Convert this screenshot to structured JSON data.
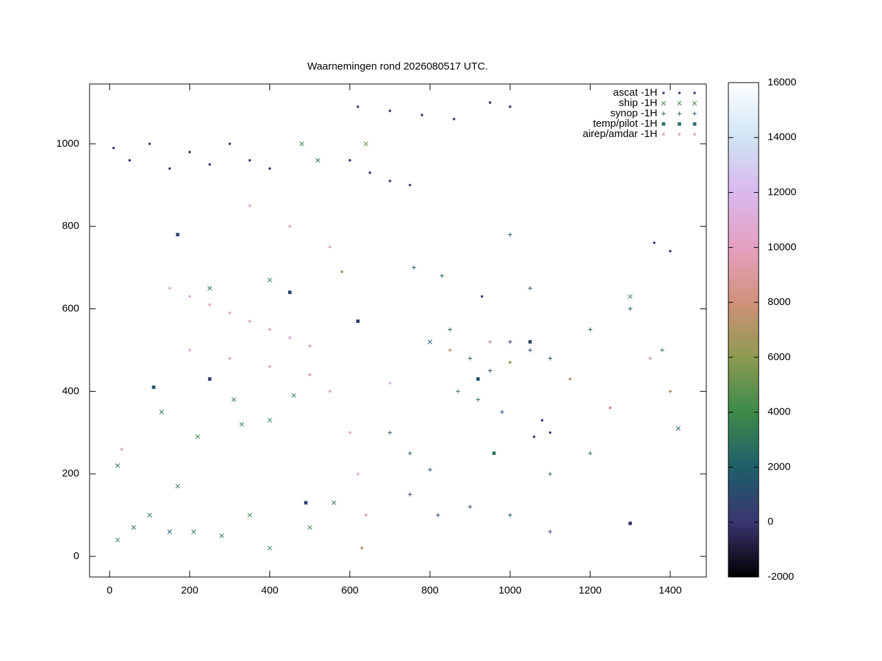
{
  "chart_data": {
    "type": "scatter",
    "title": "Waarnemingen rond 2026080517 UTC.",
    "xlim": [
      -50,
      1490
    ],
    "ylim": [
      -50,
      1145
    ],
    "xticks": [
      0,
      200,
      400,
      600,
      800,
      1000,
      1200,
      1400
    ],
    "yticks": [
      0,
      200,
      400,
      600,
      800,
      1000
    ],
    "cblim": [
      -2000,
      16000
    ],
    "cbticks": [
      -2000,
      0,
      2000,
      4000,
      6000,
      8000,
      10000,
      12000,
      14000,
      16000
    ],
    "palette": [
      "#000000",
      "#3a3570",
      "#1f5f6a",
      "#3d8a4a",
      "#8e9a52",
      "#d0917a",
      "#e6a0c0",
      "#d9b8ee",
      "#d0e4f4",
      "#ffffff"
    ],
    "legend": "upper right",
    "series": [
      {
        "name": "ascat -1H",
        "marker": "dot",
        "color": "#3a3570",
        "x": [
          10,
          50,
          100,
          150,
          200,
          250,
          300,
          350,
          400,
          600,
          650,
          700,
          750,
          620,
          700,
          780,
          860,
          950,
          1000,
          1360,
          1400,
          1060,
          1100,
          1080,
          930
        ],
        "y": [
          990,
          960,
          1000,
          940,
          980,
          950,
          1000,
          960,
          940,
          960,
          930,
          910,
          900,
          1090,
          1080,
          1070,
          1060,
          1100,
          1090,
          760,
          740,
          290,
          300,
          330,
          630
        ],
        "z": [
          0,
          0,
          200,
          0,
          -200,
          0,
          0,
          0,
          0,
          0,
          0,
          0,
          0,
          0,
          0,
          0,
          0,
          0,
          0,
          0,
          0,
          0,
          0,
          0,
          0
        ]
      },
      {
        "name": "ship -1H",
        "marker": "cross",
        "color": "#3d8a4a",
        "x": [
          20,
          60,
          100,
          150,
          210,
          280,
          400,
          500,
          130,
          220,
          310,
          330,
          400,
          460,
          20,
          170,
          350,
          560,
          480,
          640,
          520,
          800,
          400,
          250,
          1300,
          1420
        ],
        "y": [
          40,
          70,
          100,
          60,
          60,
          50,
          20,
          70,
          350,
          290,
          380,
          320,
          330,
          390,
          220,
          170,
          100,
          130,
          1000,
          1000,
          960,
          520,
          670,
          650,
          630,
          310
        ],
        "z": [
          3000,
          2500,
          3500,
          2000,
          3000,
          2500,
          3000,
          4000,
          3000,
          4000,
          3500,
          3000,
          3000,
          3500,
          3000,
          2500,
          4000,
          3000,
          4000,
          5000,
          3000,
          2000,
          3500,
          2500,
          3000,
          2000
        ]
      },
      {
        "name": "synop -1H",
        "marker": "plus",
        "color": "#1f5f6a",
        "x": [
          850,
          900,
          950,
          1000,
          1050,
          1100,
          870,
          920,
          980,
          700,
          750,
          800,
          750,
          820,
          900,
          1000,
          1100,
          760,
          830,
          1200,
          1300,
          1380,
          1100,
          1200,
          1050,
          1000
        ],
        "y": [
          550,
          480,
          450,
          520,
          500,
          480,
          400,
          380,
          350,
          300,
          250,
          210,
          150,
          100,
          120,
          100,
          60,
          700,
          680,
          550,
          600,
          500,
          200,
          250,
          650,
          780
        ],
        "z": [
          1500,
          2000,
          1000,
          500,
          800,
          1200,
          3000,
          2500,
          1000,
          1500,
          2000,
          1000,
          500,
          800,
          1000,
          1500,
          1000,
          1500,
          2000,
          2000,
          1500,
          2500,
          3000,
          2500,
          1000,
          1500
        ]
      },
      {
        "name": "temp/pilot -1H",
        "marker": "square",
        "color": "#2a6e6a",
        "x": [
          170,
          250,
          450,
          620,
          920,
          1050,
          1300,
          490,
          110,
          960
        ],
        "y": [
          780,
          430,
          640,
          570,
          430,
          520,
          80,
          130,
          410,
          250
        ],
        "z": [
          1000,
          500,
          1000,
          500,
          1500,
          1000,
          0,
          500,
          1500,
          3000
        ]
      },
      {
        "name": "airep/amdar -1H",
        "marker": "diamond",
        "color": "#e6a0c0",
        "x": [
          150,
          200,
          250,
          300,
          350,
          400,
          450,
          500,
          200,
          300,
          400,
          500,
          550,
          600,
          620,
          640,
          630,
          350,
          450,
          550,
          850,
          950,
          1000,
          1150,
          1250,
          1400,
          1350,
          580,
          30,
          700
        ],
        "y": [
          650,
          630,
          610,
          590,
          570,
          550,
          530,
          510,
          500,
          480,
          460,
          440,
          400,
          300,
          200,
          100,
          20,
          850,
          800,
          750,
          500,
          520,
          470,
          430,
          360,
          400,
          480,
          690,
          260,
          420
        ],
        "z": [
          11500,
          11000,
          10500,
          11000,
          10000,
          10500,
          11000,
          10000,
          11000,
          10500,
          10000,
          9500,
          10000,
          10500,
          11000,
          10000,
          7000,
          11000,
          10000,
          10500,
          8000,
          9000,
          6000,
          7500,
          8000,
          7000,
          9000,
          6500,
          10000,
          12000
        ]
      }
    ]
  }
}
